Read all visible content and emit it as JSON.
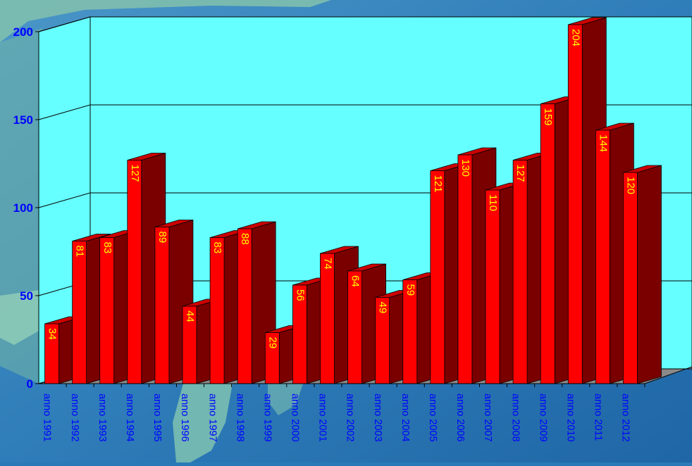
{
  "chart_data": {
    "type": "bar",
    "title": "",
    "xlabel": "",
    "ylabel": "",
    "categories": [
      "anno 1991",
      "anno 1992",
      "anno 1993",
      "anno 1994",
      "anno 1995",
      "anno 1996",
      "anno 1997",
      "anno 1998",
      "anno 1999",
      "anno 2000",
      "anno 2001",
      "anno 2002",
      "anno 2003",
      "anno 2004",
      "anno 2005",
      "anno 2006",
      "anno 2007",
      "anno 2008",
      "anno 2009",
      "anno 2010",
      "anno 2011",
      "anno 2012"
    ],
    "values": [
      34,
      81,
      83,
      127,
      89,
      44,
      83,
      88,
      29,
      56,
      74,
      64,
      49,
      59,
      121,
      130,
      110,
      127,
      159,
      204,
      144,
      120
    ],
    "ylim": [
      0,
      200
    ],
    "yticks": [
      0,
      50,
      100,
      150,
      200
    ],
    "grid": true,
    "bar_front_color": "#ff0000",
    "bar_side_color": "#7a0000",
    "bar_top_color": "#cc0000",
    "value_label_color": "#ffff00",
    "axis_label_color": "#0000ff",
    "back_wall_color": "#66ffff",
    "floor_color": "#8a8a8a"
  }
}
